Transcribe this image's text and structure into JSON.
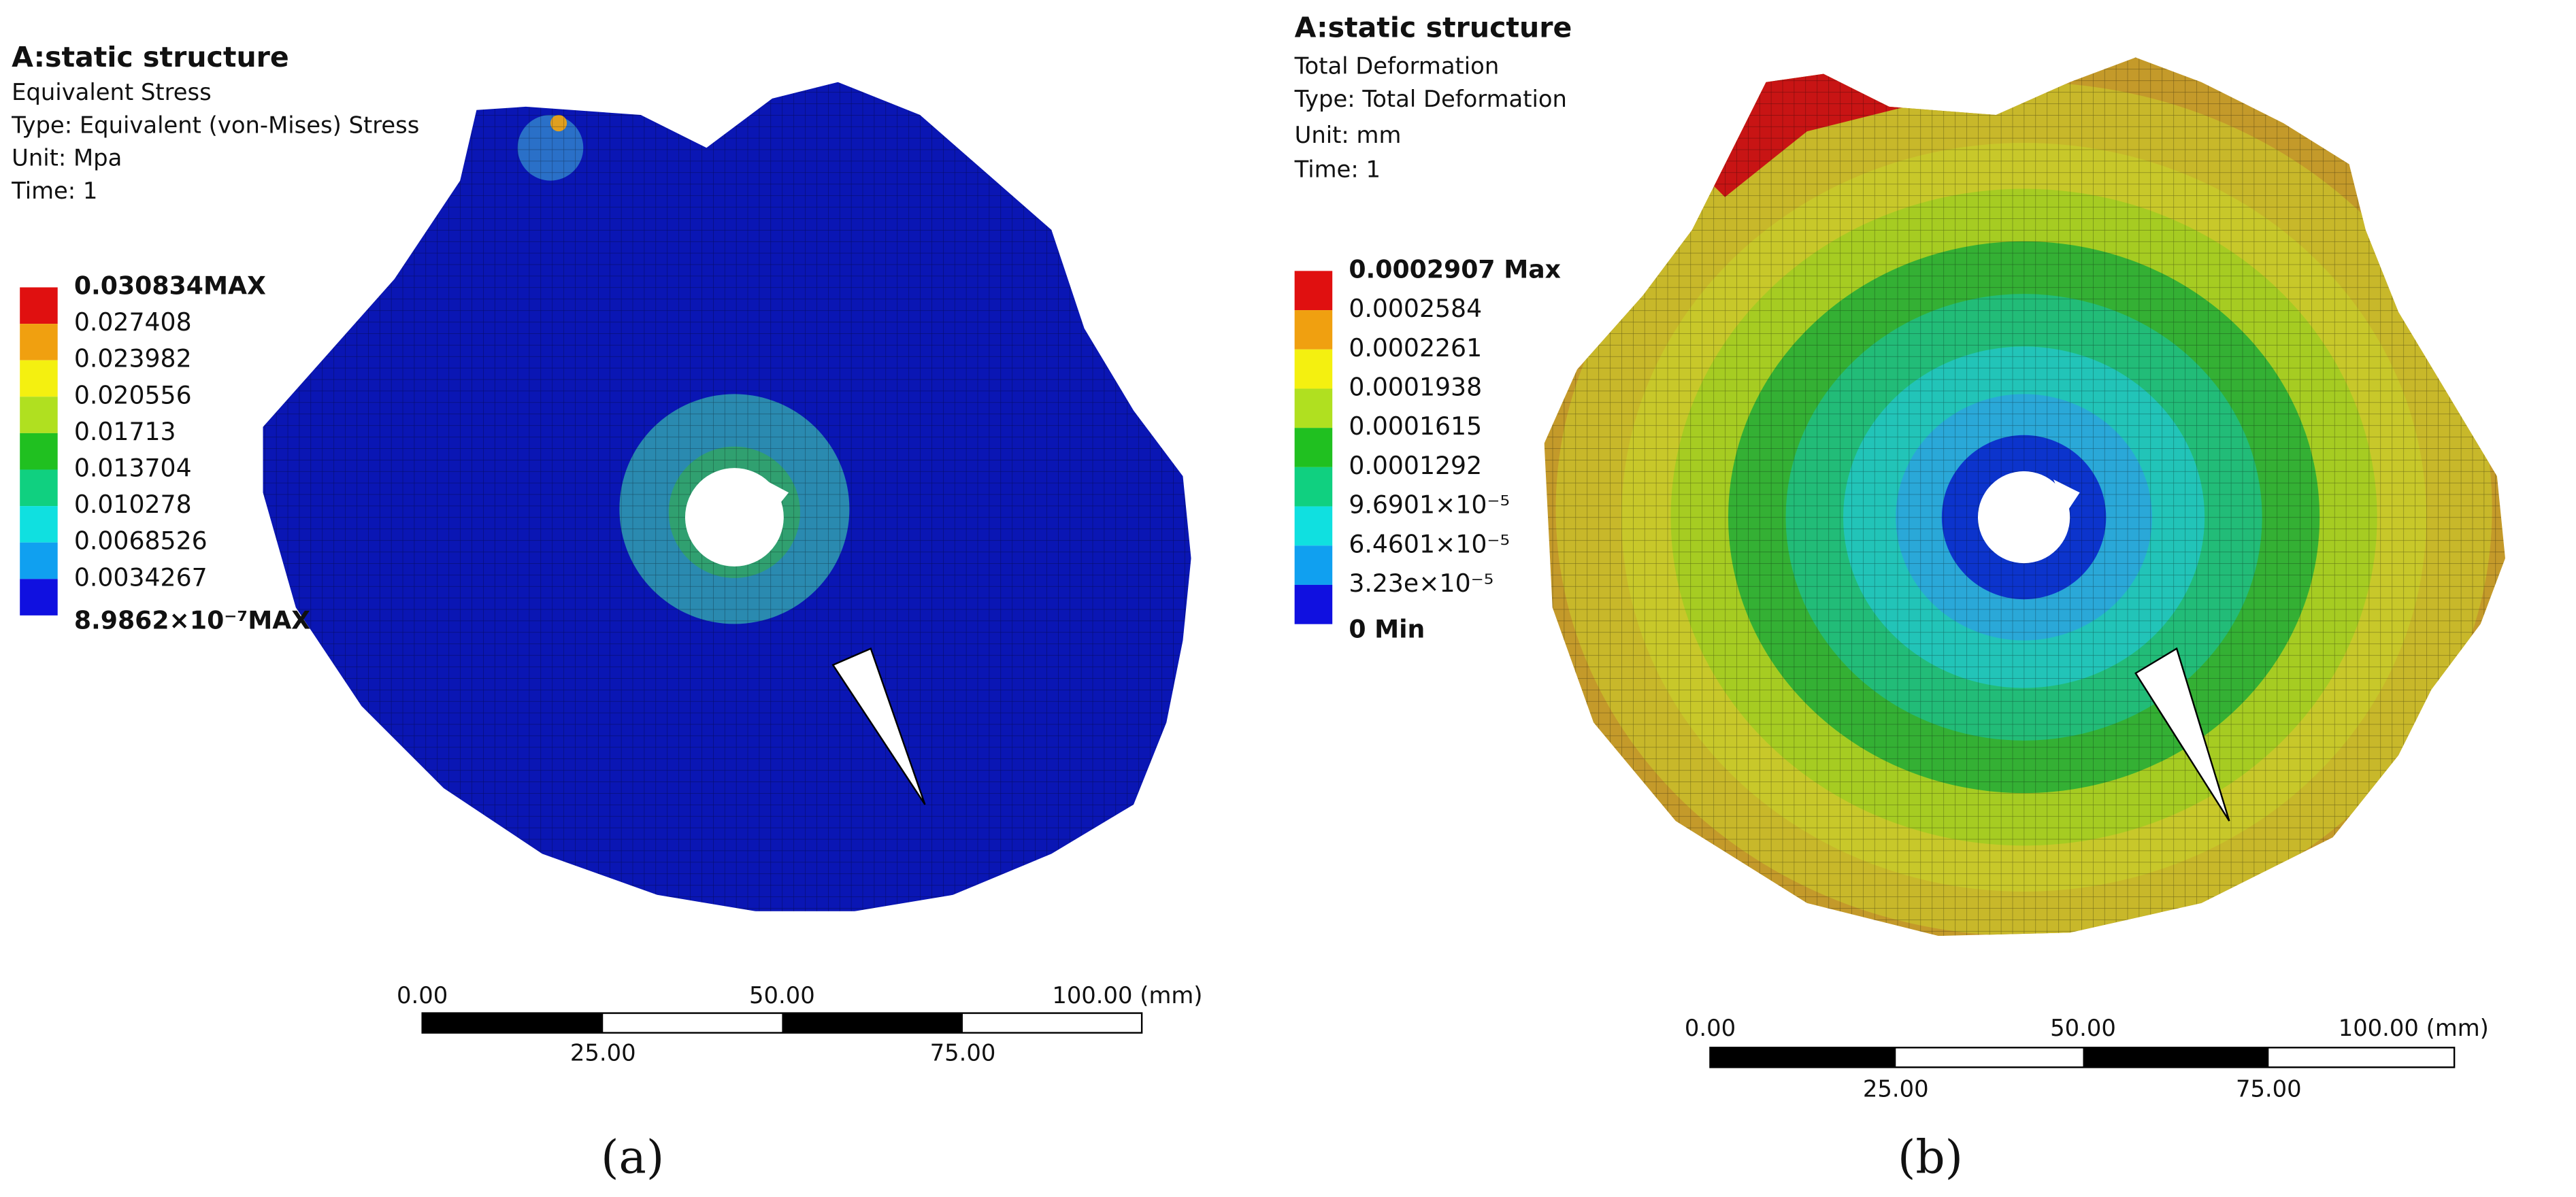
{
  "panels": [
    {
      "header": {
        "title": "A:static structure",
        "lines": [
          "Equivalent Stress",
          "Type: Equivalent  (von-Mises) Stress",
          "Unit: Mpa",
          "Time: 1"
        ]
      },
      "legend": [
        "0.030834MAX",
        "0.027408",
        "0.023982",
        "0.020556",
        "0.01713",
        "0.013704",
        "0.010278",
        "0.0068526",
        "0.0034267",
        "8.9862×10⁻⁷MAX"
      ],
      "scale_bar": {
        "top": [
          "0.00",
          "50.00",
          "100.00 (mm)"
        ],
        "bottom": [
          "25.00",
          "75.00"
        ]
      },
      "caption": "(a)"
    },
    {
      "header": {
        "title": "A:static structure",
        "lines": [
          "Total Deformation",
          "Type: Total Deformation",
          "Unit: mm",
          "Time: 1"
        ]
      },
      "legend": [
        "0.0002907 Max",
        "0.0002584",
        "0.0002261",
        "0.0001938",
        "0.0001615",
        "0.0001292",
        "9.6901×10⁻⁵",
        "6.4601×10⁻⁵",
        "3.23e×10⁻⁵",
        "0 Min"
      ],
      "scale_bar": {
        "top": [
          "0.00",
          "50.00",
          "100.00 (mm)"
        ],
        "bottom": [
          "25.00",
          "75.00"
        ]
      },
      "caption": "(b)"
    }
  ]
}
